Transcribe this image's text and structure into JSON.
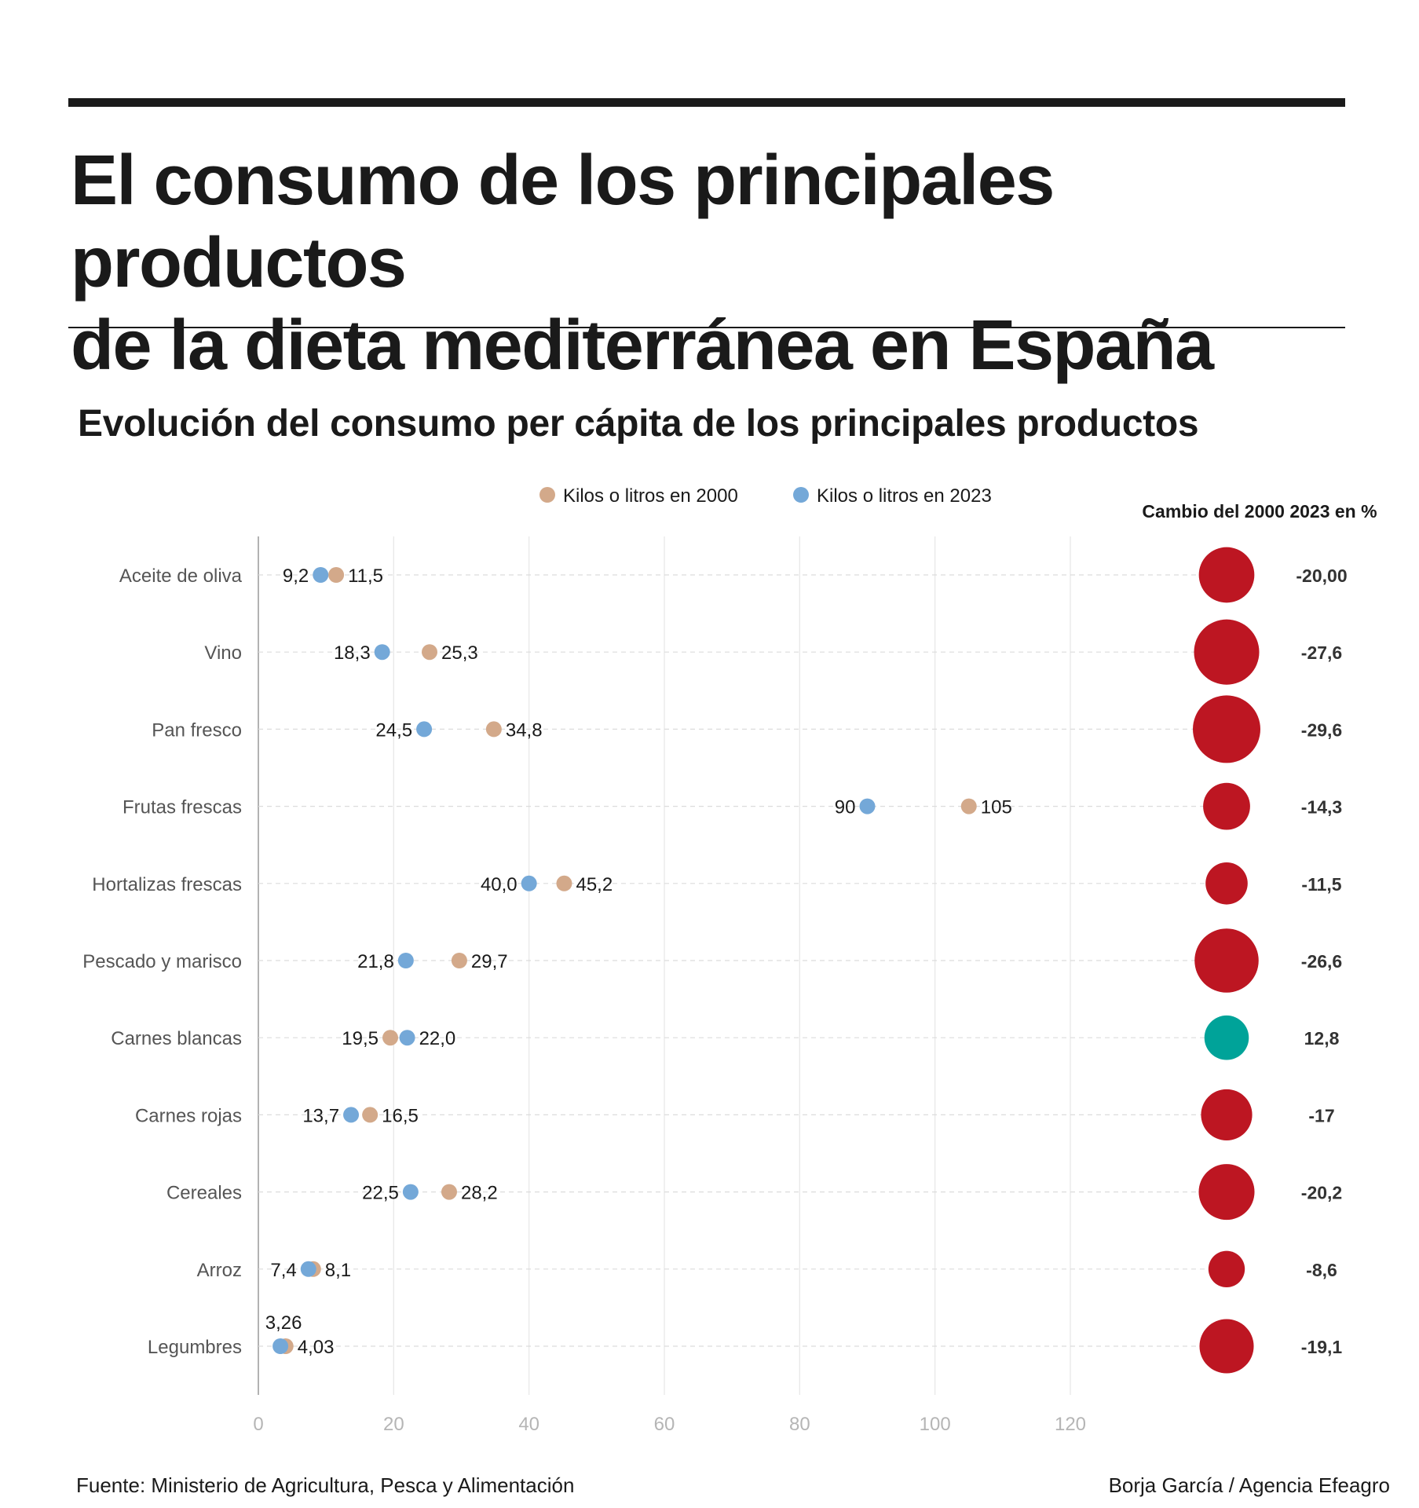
{
  "header": {
    "title_line1": "El consumo de los principales productos",
    "title_line2": "de la dieta mediterránea en España",
    "subtitle": "Evolución del consumo per cápita de los principales productos"
  },
  "colors": {
    "y2000": "#d3a98a",
    "y2023": "#74a8d8",
    "decrease": "#bd1622",
    "increase": "#00a399"
  },
  "chart_data": {
    "type": "dumbbell",
    "title": "Evolución del consumo per cápita de los principales productos",
    "legend": [
      "Kilos o litros en 2000",
      "Kilos o litros en 2023"
    ],
    "legend_placement": "top",
    "change_header": "Cambio del 2000  2023 en %",
    "categories": [
      "Aceite de oliva",
      "Vino",
      "Pan fresco",
      "Frutas frescas",
      "Hortalizas frescas",
      "Pescado y marisco",
      "Carnes blancas",
      "Carnes rojas",
      "Cereales",
      "Arroz",
      "Legumbres"
    ],
    "series": [
      {
        "name": "Kilos o litros en 2000",
        "values": [
          11.5,
          25.3,
          34.8,
          105,
          45.2,
          29.7,
          19.5,
          16.5,
          28.2,
          8.1,
          4.03
        ],
        "labels": [
          "11,5",
          "25,3",
          "34,8",
          "105",
          "45,2",
          "29,7",
          "19,5",
          "16,5",
          "28,2",
          "8,1",
          "4,03"
        ]
      },
      {
        "name": "Kilos o litros en 2023",
        "values": [
          9.2,
          18.3,
          24.5,
          90,
          40.0,
          21.8,
          22.0,
          13.7,
          22.5,
          7.4,
          3.26
        ],
        "labels": [
          "9,2",
          "18,3",
          "24,5",
          "90",
          "40,0",
          "21,8",
          "22,0",
          "13,7",
          "22,5",
          "7,4",
          "3,26"
        ]
      }
    ],
    "change_pct": [
      -20.0,
      -27.6,
      -29.6,
      -14.3,
      -11.5,
      -26.6,
      12.8,
      -17,
      -20.2,
      -8.6,
      -19.1
    ],
    "change_labels": [
      "-20,00",
      "-27,6",
      "-29,6",
      "-14,3",
      "-11,5",
      "-26,6",
      "12,8",
      "-17",
      "-20,2",
      "-8,6",
      "-19,1"
    ],
    "xlim": [
      0,
      130
    ],
    "xticks": [
      "0",
      "20",
      "40",
      "60",
      "80",
      "100",
      "120"
    ],
    "grid": "vertical"
  },
  "footer": {
    "source": "Fuente: Ministerio de Agricultura, Pesca y Alimentación",
    "credit": "Borja García / Agencia Efeagro"
  }
}
